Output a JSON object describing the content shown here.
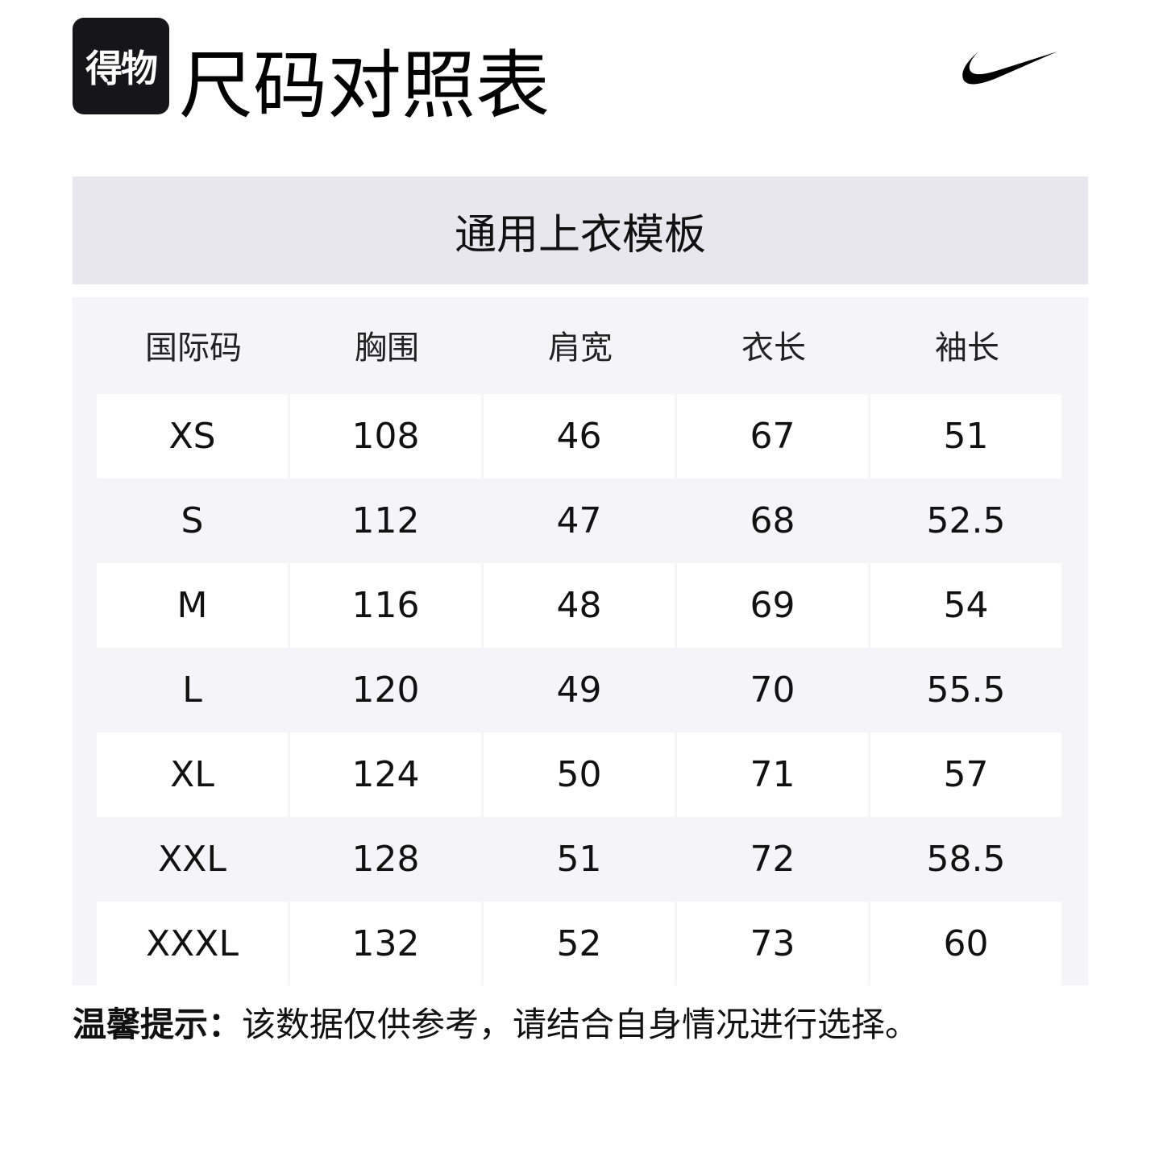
{
  "brand": {
    "logo_text": "得物",
    "partner_logo": "nike-swoosh"
  },
  "title": "尺码对照表",
  "template_name": "通用上衣模板",
  "table": {
    "headers": [
      "国际码",
      "胸围",
      "肩宽",
      "衣长",
      "袖长"
    ],
    "rows": [
      [
        "XS",
        "108",
        "46",
        "67",
        "51"
      ],
      [
        "S",
        "112",
        "47",
        "68",
        "52.5"
      ],
      [
        "M",
        "116",
        "48",
        "69",
        "54"
      ],
      [
        "L",
        "120",
        "49",
        "70",
        "55.5"
      ],
      [
        "XL",
        "124",
        "50",
        "71",
        "57"
      ],
      [
        "XXL",
        "128",
        "51",
        "72",
        "58.5"
      ],
      [
        "XXXL",
        "132",
        "52",
        "73",
        "60"
      ]
    ]
  },
  "note": {
    "label": "温馨提示：",
    "text": "该数据仅供参考，请结合自身情况进行选择。"
  },
  "colors": {
    "band": "#e7e7ed",
    "table_bg": "#f4f4f9",
    "logo_bg": "#16161a"
  }
}
